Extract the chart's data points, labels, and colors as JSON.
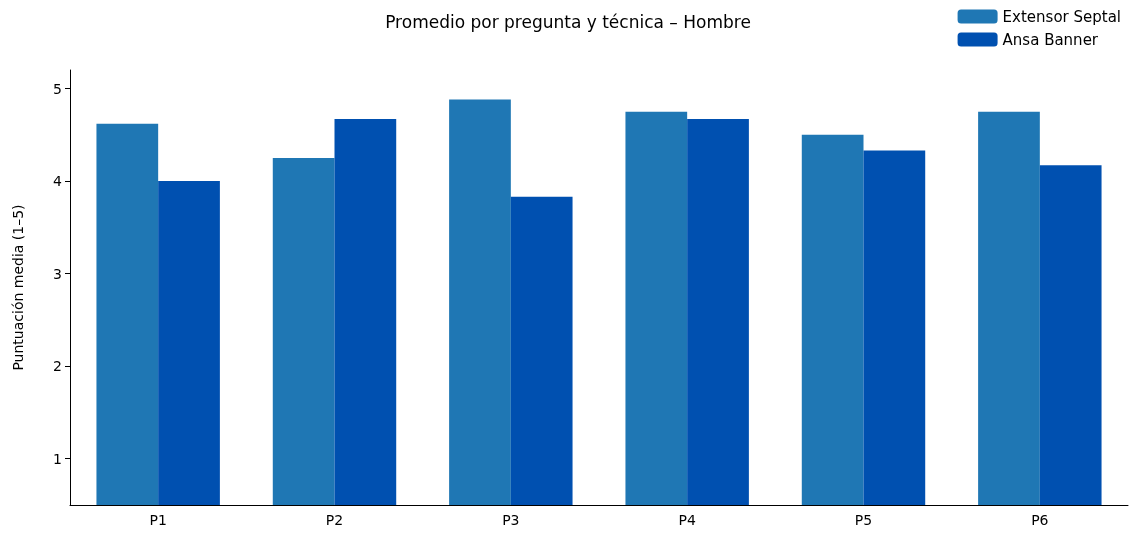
{
  "chart_data": {
    "type": "bar",
    "title": "Promedio por pregunta y técnica – Hombre",
    "ylabel": "Puntuación media (1–5)",
    "categories": [
      "P1",
      "P2",
      "P3",
      "P4",
      "P5",
      "P6"
    ],
    "series": [
      {
        "name": "Extensor Septal",
        "color": "#1f77b4",
        "values": [
          4.62,
          4.25,
          4.88,
          4.75,
          4.5,
          4.75
        ]
      },
      {
        "name": "Ansa Banner",
        "color": "#0050b0",
        "values": [
          4.0,
          4.67,
          3.83,
          4.67,
          4.33,
          4.17
        ]
      }
    ],
    "ylim": [
      0.5,
      5.2
    ],
    "yticks": [
      1,
      2,
      3,
      4,
      5
    ],
    "grid": false,
    "legend": "top right"
  }
}
